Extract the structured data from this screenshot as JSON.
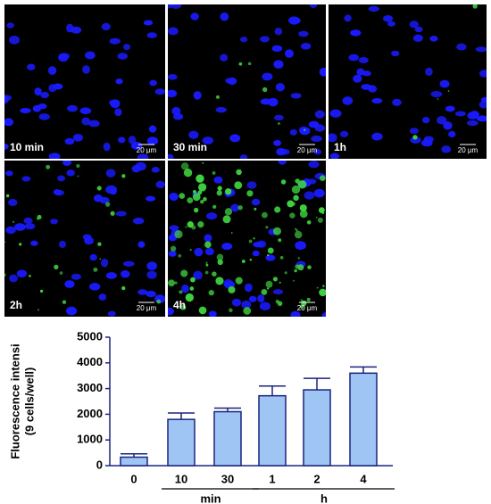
{
  "images": [
    {
      "label": "10 min",
      "scale_bar": "20 μm"
    },
    {
      "label": "30 min",
      "scale_bar": "20 μm"
    },
    {
      "label": "1h",
      "scale_bar": "20 μm"
    },
    {
      "label": "2h",
      "scale_bar": "20 μm"
    },
    {
      "label": "4h",
      "scale_bar": "20 μm"
    }
  ],
  "chart_data": {
    "type": "bar",
    "y_label": [
      "Fluorescence intensi",
      "(9 cells/well)"
    ],
    "categories": [
      "0",
      "10",
      "30",
      "1",
      "2",
      "4"
    ],
    "groups": [
      "min",
      "h"
    ],
    "values": [
      330,
      1800,
      2100,
      2720,
      2950,
      3600
    ],
    "errors": [
      130,
      250,
      140,
      380,
      450,
      240
    ],
    "color": "#9ec5f4",
    "edge_color": "#1a237e",
    "ylim": [
      0,
      5000
    ],
    "yticks": [
      0,
      1000,
      2000,
      3000,
      4000,
      5000
    ]
  }
}
